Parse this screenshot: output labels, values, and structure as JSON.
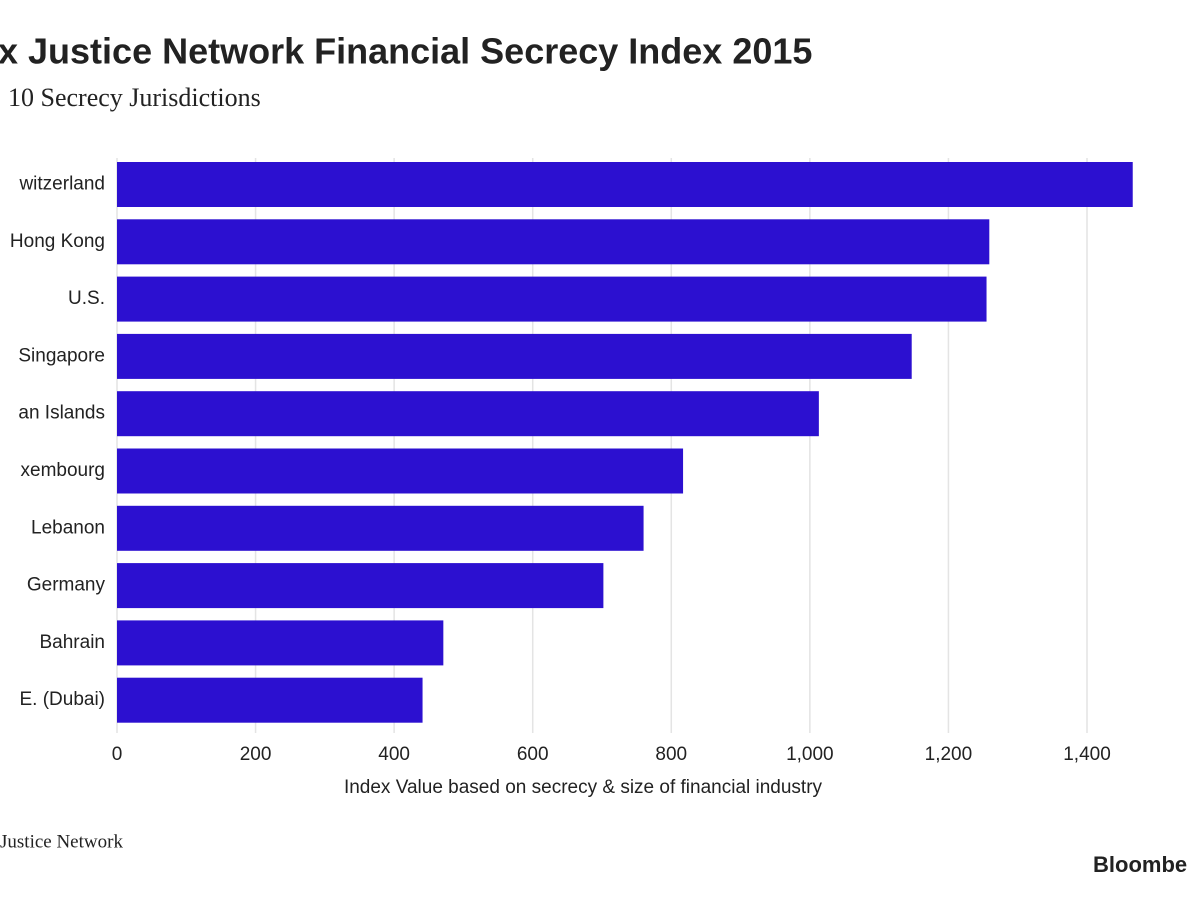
{
  "chart_data": {
    "type": "hbar",
    "title": "x Justice Network Financial Secrecy Index 2015",
    "subtitle": "10 Secrecy Jurisdictions",
    "categories": [
      "witzerland",
      "Hong Kong",
      "U.S.",
      "Singapore",
      "an Islands",
      "xembourg",
      "Lebanon",
      "Germany",
      "Bahrain",
      "E. (Dubai)"
    ],
    "values": [
      1466,
      1259,
      1255,
      1147,
      1013,
      817,
      760,
      702,
      471,
      441
    ],
    "color": "#2c10d0",
    "xlim": [
      0,
      1400
    ],
    "xticks": [
      0,
      200,
      400,
      600,
      800,
      {
        "value": 1000,
        "label": "1,000"
      },
      {
        "value": 1200,
        "label": "1,200"
      },
      {
        "value": 1400,
        "label": "1,400"
      }
    ],
    "xlabel": "Index Value based on secrecy & size of financial industry",
    "grid": true,
    "source": "Justice Network",
    "brand": "Bloombe"
  }
}
